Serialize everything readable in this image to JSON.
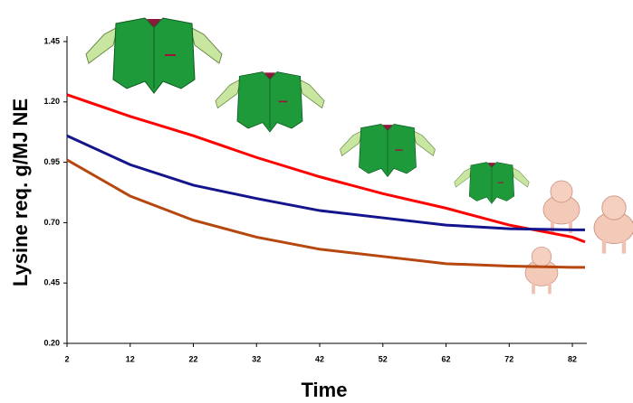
{
  "chart_data": {
    "type": "line",
    "x_label": "Time",
    "y_label": "Lysine req. g/MJ NE",
    "x": [
      2,
      12,
      22,
      32,
      42,
      52,
      62,
      72,
      82,
      84
    ],
    "series": [
      {
        "color": "#ff0000",
        "values": [
          1.23,
          1.14,
          1.06,
          0.97,
          0.89,
          0.82,
          0.76,
          0.69,
          0.64,
          0.62
        ]
      },
      {
        "color": "#14148c",
        "values": [
          1.06,
          0.94,
          0.855,
          0.8,
          0.75,
          0.72,
          0.69,
          0.675,
          0.67,
          0.67
        ]
      },
      {
        "color": "#b5470f",
        "values": [
          0.96,
          0.81,
          0.71,
          0.64,
          0.59,
          0.56,
          0.53,
          0.52,
          0.515,
          0.515
        ]
      }
    ],
    "xlim": [
      2,
      84
    ],
    "ylim": [
      0.2,
      1.45
    ],
    "xticks": [
      2,
      12,
      22,
      32,
      42,
      52,
      62,
      72,
      82
    ],
    "yticks": [
      {
        "value": 0.2,
        "label": "0.20"
      },
      {
        "value": 0.45,
        "label": "0.45"
      },
      {
        "value": 0.7,
        "label": "0.70"
      },
      {
        "value": 0.95,
        "label": "0.95"
      },
      {
        "value": 1.2,
        "label": "1.20"
      },
      {
        "value": 1.45,
        "label": "1.45"
      }
    ],
    "grid": false
  }
}
